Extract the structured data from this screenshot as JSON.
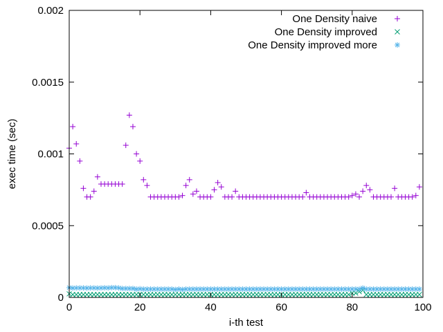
{
  "chart_data": {
    "type": "scatter",
    "xlabel": "i-th test",
    "ylabel": "exec time (sec)",
    "xlim": [
      0,
      100
    ],
    "ylim": [
      0,
      0.002
    ],
    "x_ticks": [
      "0",
      "20",
      "40",
      "60",
      "80",
      "100"
    ],
    "y_ticks": [
      "0",
      "0.0005",
      "0.001",
      "0.0015",
      "0.002"
    ],
    "grid": false,
    "legend_position": "top-right",
    "series": [
      {
        "name": "One Density naive",
        "marker": "plus",
        "color": "#9400d3",
        "x": [
          0,
          1,
          2,
          3,
          4,
          5,
          6,
          7,
          8,
          9,
          10,
          11,
          12,
          13,
          14,
          15,
          16,
          17,
          18,
          19,
          20,
          21,
          22,
          23,
          24,
          25,
          26,
          27,
          28,
          29,
          30,
          31,
          32,
          33,
          34,
          35,
          36,
          37,
          38,
          39,
          40,
          41,
          42,
          43,
          44,
          45,
          46,
          47,
          48,
          49,
          50,
          51,
          52,
          53,
          54,
          55,
          56,
          57,
          58,
          59,
          60,
          61,
          62,
          63,
          64,
          65,
          66,
          67,
          68,
          69,
          70,
          71,
          72,
          73,
          74,
          75,
          76,
          77,
          78,
          79,
          80,
          81,
          82,
          83,
          84,
          85,
          86,
          87,
          88,
          89,
          90,
          91,
          92,
          93,
          94,
          95,
          96,
          97,
          98,
          99
        ],
        "y": [
          0.00104,
          0.00119,
          0.00107,
          0.00095,
          0.00076,
          0.0007,
          0.0007,
          0.00074,
          0.00084,
          0.00079,
          0.00079,
          0.00079,
          0.00079,
          0.00079,
          0.00079,
          0.00079,
          0.00106,
          0.00127,
          0.00119,
          0.001,
          0.00095,
          0.00082,
          0.00078,
          0.0007,
          0.0007,
          0.0007,
          0.0007,
          0.0007,
          0.0007,
          0.0007,
          0.0007,
          0.0007,
          0.00071,
          0.00078,
          0.00082,
          0.00072,
          0.00074,
          0.0007,
          0.0007,
          0.0007,
          0.0007,
          0.00075,
          0.0008,
          0.00077,
          0.0007,
          0.0007,
          0.0007,
          0.00074,
          0.0007,
          0.0007,
          0.0007,
          0.0007,
          0.0007,
          0.0007,
          0.0007,
          0.0007,
          0.0007,
          0.0007,
          0.0007,
          0.0007,
          0.0007,
          0.0007,
          0.0007,
          0.0007,
          0.0007,
          0.0007,
          0.0007,
          0.00073,
          0.0007,
          0.0007,
          0.0007,
          0.0007,
          0.0007,
          0.0007,
          0.0007,
          0.0007,
          0.0007,
          0.0007,
          0.0007,
          0.0007,
          0.00071,
          0.00072,
          0.0007,
          0.00074,
          0.00078,
          0.00075,
          0.0007,
          0.0007,
          0.0007,
          0.0007,
          0.0007,
          0.0007,
          0.00076,
          0.0007,
          0.0007,
          0.0007,
          0.0007,
          0.0007,
          0.00071,
          0.00077
        ]
      },
      {
        "name": "One Density improved",
        "marker": "cross",
        "color": "#009e73",
        "x": [
          0,
          1,
          2,
          3,
          4,
          5,
          6,
          7,
          8,
          9,
          10,
          11,
          12,
          13,
          14,
          15,
          16,
          17,
          18,
          19,
          20,
          21,
          22,
          23,
          24,
          25,
          26,
          27,
          28,
          29,
          30,
          31,
          32,
          33,
          34,
          35,
          36,
          37,
          38,
          39,
          40,
          41,
          42,
          43,
          44,
          45,
          46,
          47,
          48,
          49,
          50,
          51,
          52,
          53,
          54,
          55,
          56,
          57,
          58,
          59,
          60,
          61,
          62,
          63,
          64,
          65,
          66,
          67,
          68,
          69,
          70,
          71,
          72,
          73,
          74,
          75,
          76,
          77,
          78,
          79,
          80,
          81,
          82,
          83,
          84,
          85,
          86,
          87,
          88,
          89,
          90,
          91,
          92,
          93,
          94,
          95,
          96,
          97,
          98,
          99
        ],
        "y": [
          2.5e-05,
          2e-05,
          2e-05,
          2e-05,
          2e-05,
          2e-05,
          2e-05,
          2e-05,
          2e-05,
          2e-05,
          2e-05,
          2e-05,
          2e-05,
          2e-05,
          2e-05,
          2e-05,
          2e-05,
          2e-05,
          2e-05,
          2e-05,
          2e-05,
          2e-05,
          2e-05,
          2e-05,
          2e-05,
          2e-05,
          2e-05,
          2e-05,
          2e-05,
          2e-05,
          2e-05,
          2e-05,
          2e-05,
          2e-05,
          2e-05,
          2e-05,
          2e-05,
          2e-05,
          2e-05,
          2e-05,
          2e-05,
          2e-05,
          2e-05,
          2e-05,
          2e-05,
          2e-05,
          2e-05,
          2e-05,
          2e-05,
          2e-05,
          2e-05,
          2e-05,
          2e-05,
          2e-05,
          2e-05,
          2e-05,
          2e-05,
          2e-05,
          2e-05,
          2e-05,
          2e-05,
          2e-05,
          2e-05,
          2e-05,
          2e-05,
          2e-05,
          2e-05,
          2e-05,
          2e-05,
          2e-05,
          2e-05,
          2e-05,
          2e-05,
          2e-05,
          2e-05,
          2e-05,
          2e-05,
          2e-05,
          2e-05,
          2e-05,
          3e-05,
          3e-05,
          4e-05,
          5e-05,
          2e-05,
          2e-05,
          2e-05,
          2e-05,
          2e-05,
          2e-05,
          2e-05,
          2e-05,
          2e-05,
          2e-05,
          2e-05,
          2e-05,
          2e-05,
          2e-05,
          2e-05,
          2e-05
        ]
      },
      {
        "name": "One Density improved more",
        "marker": "star",
        "color": "#56b4e9",
        "x": [
          0,
          1,
          2,
          3,
          4,
          5,
          6,
          7,
          8,
          9,
          10,
          11,
          12,
          13,
          14,
          15,
          16,
          17,
          18,
          19,
          20,
          21,
          22,
          23,
          24,
          25,
          26,
          27,
          28,
          29,
          30,
          31,
          32,
          33,
          34,
          35,
          36,
          37,
          38,
          39,
          40,
          41,
          42,
          43,
          44,
          45,
          46,
          47,
          48,
          49,
          50,
          51,
          52,
          53,
          54,
          55,
          56,
          57,
          58,
          59,
          60,
          61,
          62,
          63,
          64,
          65,
          66,
          67,
          68,
          69,
          70,
          71,
          72,
          73,
          74,
          75,
          76,
          77,
          78,
          79,
          80,
          81,
          82,
          83,
          84,
          85,
          86,
          87,
          88,
          89,
          90,
          91,
          92,
          93,
          94,
          95,
          96,
          97,
          98,
          99
        ],
        "y": [
          6.8e-05,
          6.5e-05,
          6.6e-05,
          6.6e-05,
          6.6e-05,
          6.5e-05,
          6.6e-05,
          6.6e-05,
          6.5e-05,
          6.6e-05,
          6.7e-05,
          6.6e-05,
          6.8e-05,
          6.8e-05,
          6.6e-05,
          6.2e-05,
          6.2e-05,
          6.2e-05,
          6.2e-05,
          5.8e-05,
          6e-05,
          5.8e-05,
          5.8e-05,
          5.8e-05,
          5.8e-05,
          5.8e-05,
          5.8e-05,
          5.8e-05,
          5.8e-05,
          5.8e-05,
          5.5e-05,
          5.8e-05,
          5.5e-05,
          5.8e-05,
          5.8e-05,
          5.8e-05,
          5.8e-05,
          5.8e-05,
          5.8e-05,
          5.8e-05,
          5.8e-05,
          5.8e-05,
          5.8e-05,
          5.8e-05,
          5.8e-05,
          5.8e-05,
          5.8e-05,
          5.8e-05,
          5.8e-05,
          5.8e-05,
          5.8e-05,
          5.8e-05,
          5.8e-05,
          5.8e-05,
          5.8e-05,
          5.8e-05,
          5.8e-05,
          5.8e-05,
          5.8e-05,
          5.8e-05,
          5.8e-05,
          5.8e-05,
          5.8e-05,
          5.8e-05,
          5.8e-05,
          5.8e-05,
          5.8e-05,
          5.8e-05,
          5.8e-05,
          5.8e-05,
          5.8e-05,
          5.8e-05,
          5.8e-05,
          5.8e-05,
          5.8e-05,
          5.8e-05,
          5.8e-05,
          5.8e-05,
          5.8e-05,
          5.8e-05,
          5.8e-05,
          5.8e-05,
          5.8e-05,
          6.5e-05,
          5.8e-05,
          5.8e-05,
          5.8e-05,
          5.8e-05,
          5.8e-05,
          5.8e-05,
          5.8e-05,
          5.8e-05,
          5.8e-05,
          5.8e-05,
          5.8e-05,
          5.8e-05,
          5.8e-05,
          5.8e-05,
          5.8e-05,
          5.8e-05
        ]
      }
    ]
  }
}
